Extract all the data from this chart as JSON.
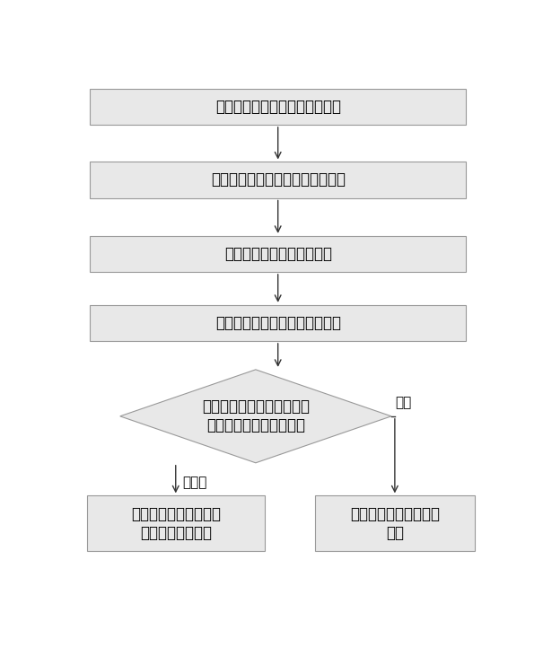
{
  "bg_color": "#ffffff",
  "box_edge_color": "#999999",
  "box_fill_color": "#e8e8e8",
  "arrow_color": "#333333",
  "text_color": "#000000",
  "font_size": 12,
  "small_font_size": 11,
  "box1_text": "在操控指令上加入遥控器类型码",
  "box2_text": "调制成控制信号，发送到机顶盒上",
  "box3_text": "接收遥控器发送的控制信号",
  "box4_text": "解析成遥控器类型码和操控指令",
  "diamond_text": "与当前机顶盒显示界面对应\n的遥控器类型码是否一致",
  "box5_text": "读取相应的机顶盒显示\n界面样式进行切换",
  "box6_text": "保留当前的机顶盒显示\n界面",
  "label_yizhi": "一致",
  "label_buyizhi": "不一致"
}
